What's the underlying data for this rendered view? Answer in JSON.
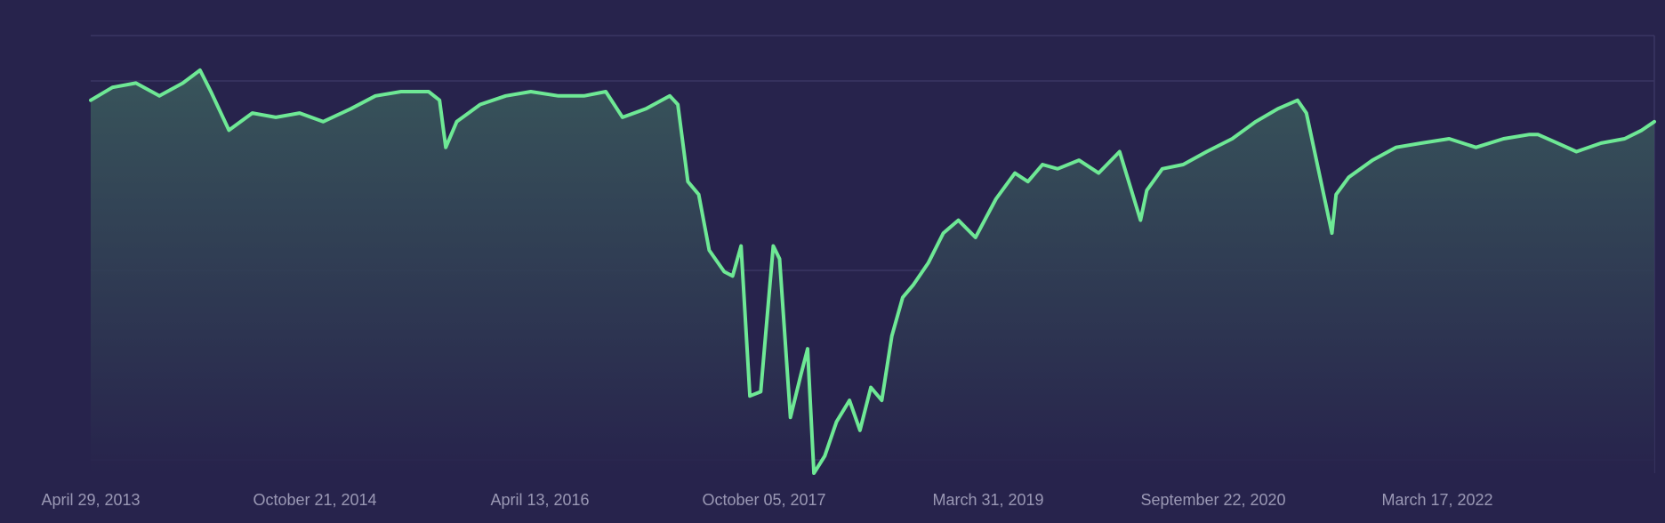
{
  "chart_data": {
    "type": "area",
    "title": "",
    "xlabel": "",
    "ylabel": "",
    "x_tick_labels": [
      "April 29, 2013",
      "October 21, 2014",
      "April 13, 2016",
      "October 05, 2017",
      "March 31, 2019",
      "September 22, 2020",
      "March 17, 2022"
    ],
    "x_range": [
      "2013-04-29",
      "2023-07-20"
    ],
    "y_range": [
      0,
      100
    ],
    "y_axis_labels_visible": false,
    "grid": "horizontal",
    "legend": "none",
    "colors": {
      "background": "#27234c",
      "line": "#6ee895",
      "grid": "#3a3663",
      "tick_text": "#9a98b4"
    },
    "series": [
      {
        "x": [
          "2013-04-29",
          "2013-06-20",
          "2013-08-15",
          "2013-10-10",
          "2013-12-05",
          "2014-01-15",
          "2014-02-10",
          "2014-03-25",
          "2014-05-20",
          "2014-07-15",
          "2014-09-10",
          "2014-11-05",
          "2015-01-10",
          "2015-03-10",
          "2015-05-10",
          "2015-07-15",
          "2015-08-10",
          "2015-08-25",
          "2015-09-20",
          "2015-11-15",
          "2016-01-15",
          "2016-03-15",
          "2016-05-20",
          "2016-07-20",
          "2016-09-10",
          "2016-10-20",
          "2016-12-15",
          "2017-02-10",
          "2017-03-01",
          "2017-03-25",
          "2017-04-20",
          "2017-05-15",
          "2017-06-20",
          "2017-07-10",
          "2017-07-30",
          "2017-08-20",
          "2017-09-15",
          "2017-10-15",
          "2017-10-30",
          "2017-11-25",
          "2017-12-20",
          "2018-01-05",
          "2018-01-20",
          "2018-02-15",
          "2018-03-15",
          "2018-04-15",
          "2018-05-10",
          "2018-06-05",
          "2018-07-01",
          "2018-07-25",
          "2018-08-20",
          "2018-09-15",
          "2018-10-20",
          "2018-11-25",
          "2018-12-31",
          "2019-02-10",
          "2019-03-31",
          "2019-05-15",
          "2019-06-15",
          "2019-07-20",
          "2019-08-25",
          "2019-10-15",
          "2019-12-01",
          "2020-01-20",
          "2020-03-10",
          "2020-03-25",
          "2020-05-01",
          "2020-06-20",
          "2020-08-15",
          "2020-10-15",
          "2020-12-10",
          "2021-02-01",
          "2021-03-20",
          "2021-04-10",
          "2021-05-15",
          "2021-06-10",
          "2021-06-20",
          "2021-07-20",
          "2021-09-15",
          "2021-11-10",
          "2022-01-10",
          "2022-03-17",
          "2022-05-20",
          "2022-07-25",
          "2022-09-25",
          "2022-10-15",
          "2022-12-01",
          "2023-01-15",
          "2023-03-15",
          "2023-05-10",
          "2023-06-20",
          "2023-07-20"
        ],
        "values": [
          87,
          90,
          91,
          88,
          91,
          94,
          89,
          80,
          84,
          83,
          84,
          82,
          85,
          88,
          89,
          89,
          87,
          76,
          82,
          86,
          88,
          89,
          88,
          88,
          89,
          83,
          85,
          88,
          86,
          68,
          65,
          52,
          47,
          46,
          53,
          18,
          19,
          53,
          50,
          13,
          23,
          29,
          0,
          4,
          12,
          17,
          10,
          20,
          17,
          32,
          41,
          44,
          49,
          56,
          59,
          55,
          64,
          70,
          68,
          72,
          71,
          73,
          70,
          75,
          59,
          66,
          71,
          72,
          75,
          78,
          82,
          85,
          87,
          84,
          68,
          56,
          65,
          69,
          73,
          76,
          77,
          78,
          76,
          78,
          79,
          79,
          77,
          75,
          77,
          78,
          80,
          82
        ]
      }
    ]
  }
}
